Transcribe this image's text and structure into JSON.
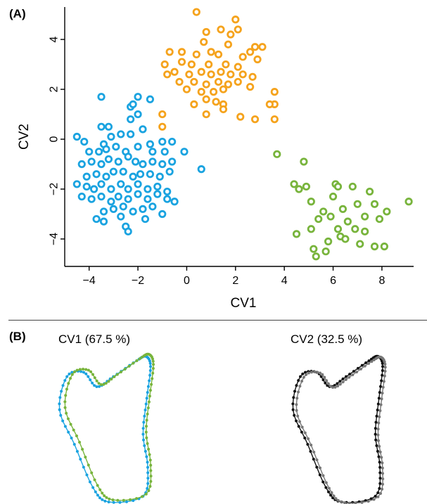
{
  "panels": {
    "a_label": "(A)",
    "b_label": "(B)"
  },
  "colors": {
    "group_blue": "#1aa3e0",
    "group_orange": "#f5a31d",
    "group_green": "#78b43c",
    "shape_dark": "#111111",
    "shape_gray": "#777777"
  },
  "chart_data": [
    {
      "type": "scatter",
      "title": "",
      "xlabel": "CV1",
      "ylabel": "CV2",
      "xlim": [
        -5,
        9.3
      ],
      "ylim": [
        -5.1,
        5.3
      ],
      "xticks": [
        -4,
        -2,
        0,
        2,
        4,
        6,
        8
      ],
      "yticks": [
        -4,
        -2,
        0,
        2,
        4
      ],
      "grid": false,
      "legend": "none",
      "series": [
        {
          "color": "#1aa3e0",
          "points": [
            [
              -2.0,
              1.7
            ],
            [
              -3.5,
              1.7
            ],
            [
              -1.5,
              1.6
            ],
            [
              -2.3,
              1.3
            ],
            [
              -2.2,
              1.4
            ],
            [
              -2.0,
              1.0
            ],
            [
              -3.2,
              0.5
            ],
            [
              -3.5,
              0.5
            ],
            [
              -2.3,
              0.8
            ],
            [
              -4.5,
              0.1
            ],
            [
              -4.2,
              -0.1
            ],
            [
              -3.4,
              -0.2
            ],
            [
              -3.1,
              0.1
            ],
            [
              -2.7,
              0.2
            ],
            [
              -2.3,
              0.2
            ],
            [
              -1.8,
              0.4
            ],
            [
              -1.5,
              -0.2
            ],
            [
              -1.0,
              -0.1
            ],
            [
              -0.6,
              -0.1
            ],
            [
              -4.0,
              -0.5
            ],
            [
              -3.6,
              -0.5
            ],
            [
              -3.3,
              -0.4
            ],
            [
              -2.9,
              -0.3
            ],
            [
              -2.5,
              -0.5
            ],
            [
              -2.0,
              -0.3
            ],
            [
              -1.4,
              -0.5
            ],
            [
              -0.9,
              -0.5
            ],
            [
              -0.1,
              -0.5
            ],
            [
              -4.3,
              -1.0
            ],
            [
              -3.9,
              -0.9
            ],
            [
              -3.5,
              -1.0
            ],
            [
              -3.2,
              -0.8
            ],
            [
              -2.8,
              -0.9
            ],
            [
              -2.4,
              -0.7
            ],
            [
              -2.1,
              -0.9
            ],
            [
              -1.8,
              -1.0
            ],
            [
              -1.4,
              -0.9
            ],
            [
              -1.0,
              -1.0
            ],
            [
              -0.6,
              -0.9
            ],
            [
              -4.1,
              -1.5
            ],
            [
              -3.7,
              -1.4
            ],
            [
              -3.3,
              -1.5
            ],
            [
              -3.0,
              -1.3
            ],
            [
              -2.6,
              -1.3
            ],
            [
              -2.2,
              -1.5
            ],
            [
              -1.9,
              -1.4
            ],
            [
              -1.5,
              -1.4
            ],
            [
              -1.1,
              -1.5
            ],
            [
              -0.7,
              -1.3
            ],
            [
              0.6,
              -1.2
            ],
            [
              -4.5,
              -1.8
            ],
            [
              -4.1,
              -1.9
            ],
            [
              -3.8,
              -2.0
            ],
            [
              -3.5,
              -1.8
            ],
            [
              -3.1,
              -2.0
            ],
            [
              -2.7,
              -1.8
            ],
            [
              -2.4,
              -2.0
            ],
            [
              -2.0,
              -1.8
            ],
            [
              -1.6,
              -2.0
            ],
            [
              -1.2,
              -1.9
            ],
            [
              -0.8,
              -2.1
            ],
            [
              -4.3,
              -2.3
            ],
            [
              -3.9,
              -2.4
            ],
            [
              -3.5,
              -2.3
            ],
            [
              -3.1,
              -2.5
            ],
            [
              -2.8,
              -2.3
            ],
            [
              -2.4,
              -2.4
            ],
            [
              -2.0,
              -2.2
            ],
            [
              -1.6,
              -2.4
            ],
            [
              -1.2,
              -2.2
            ],
            [
              -0.8,
              -2.4
            ],
            [
              -0.5,
              -2.5
            ],
            [
              -3.4,
              -2.9
            ],
            [
              -3.0,
              -2.8
            ],
            [
              -2.6,
              -2.7
            ],
            [
              -2.2,
              -2.9
            ],
            [
              -1.8,
              -2.8
            ],
            [
              -1.4,
              -2.7
            ],
            [
              -1.0,
              -3.0
            ],
            [
              -3.7,
              -3.2
            ],
            [
              -3.4,
              -3.3
            ],
            [
              -2.7,
              -3.1
            ],
            [
              -2.5,
              -3.5
            ],
            [
              -2.4,
              -3.7
            ],
            [
              -1.7,
              -3.2
            ]
          ]
        },
        {
          "color": "#f5a31d",
          "points": [
            [
              0.4,
              5.1
            ],
            [
              2.0,
              4.8
            ],
            [
              2.1,
              4.4
            ],
            [
              1.4,
              4.4
            ],
            [
              0.8,
              4.3
            ],
            [
              1.8,
              4.2
            ],
            [
              0.7,
              3.9
            ],
            [
              1.7,
              3.8
            ],
            [
              2.8,
              3.7
            ],
            [
              3.1,
              3.7
            ],
            [
              2.6,
              3.5
            ],
            [
              -0.7,
              3.5
            ],
            [
              -0.2,
              3.5
            ],
            [
              0.4,
              3.4
            ],
            [
              1.0,
              3.5
            ],
            [
              1.3,
              3.4
            ],
            [
              2.3,
              3.3
            ],
            [
              2.9,
              3.2
            ],
            [
              -0.9,
              3.0
            ],
            [
              -0.2,
              3.1
            ],
            [
              0.2,
              3.0
            ],
            [
              0.9,
              3.0
            ],
            [
              1.6,
              3.0
            ],
            [
              2.1,
              2.9
            ],
            [
              -0.8,
              2.6
            ],
            [
              -0.5,
              2.7
            ],
            [
              0.1,
              2.6
            ],
            [
              0.6,
              2.7
            ],
            [
              1.0,
              2.6
            ],
            [
              1.4,
              2.7
            ],
            [
              1.8,
              2.6
            ],
            [
              2.3,
              2.6
            ],
            [
              2.7,
              2.5
            ],
            [
              -0.3,
              2.3
            ],
            [
              0.3,
              2.3
            ],
            [
              0.8,
              2.2
            ],
            [
              1.3,
              2.3
            ],
            [
              1.7,
              2.2
            ],
            [
              2.1,
              2.3
            ],
            [
              2.6,
              2.1
            ],
            [
              0.0,
              2.0
            ],
            [
              0.6,
              1.9
            ],
            [
              1.1,
              1.9
            ],
            [
              1.5,
              2.0
            ],
            [
              3.6,
              1.9
            ],
            [
              0.8,
              1.6
            ],
            [
              1.2,
              1.5
            ],
            [
              0.3,
              1.4
            ],
            [
              1.5,
              1.4
            ],
            [
              3.6,
              1.4
            ],
            [
              1.5,
              1.2
            ],
            [
              -1.0,
              1.0
            ],
            [
              0.8,
              1.0
            ],
            [
              3.4,
              1.4
            ],
            [
              2.2,
              0.9
            ],
            [
              2.8,
              0.8
            ],
            [
              3.6,
              0.8
            ],
            [
              -1.0,
              0.5
            ]
          ]
        },
        {
          "color": "#78b43c",
          "points": [
            [
              3.7,
              -0.6
            ],
            [
              4.8,
              -0.9
            ],
            [
              4.4,
              -1.8
            ],
            [
              4.6,
              -2.0
            ],
            [
              4.9,
              -1.9
            ],
            [
              6.1,
              -1.8
            ],
            [
              6.2,
              -1.9
            ],
            [
              6.8,
              -1.9
            ],
            [
              7.5,
              -2.1
            ],
            [
              6.0,
              -2.3
            ],
            [
              5.1,
              -2.5
            ],
            [
              5.6,
              -2.9
            ],
            [
              6.4,
              -2.8
            ],
            [
              7.0,
              -2.6
            ],
            [
              7.7,
              -2.6
            ],
            [
              8.2,
              -2.9
            ],
            [
              9.1,
              -2.5
            ],
            [
              5.4,
              -3.2
            ],
            [
              5.9,
              -3.1
            ],
            [
              6.6,
              -3.3
            ],
            [
              7.3,
              -3.1
            ],
            [
              7.9,
              -3.2
            ],
            [
              4.5,
              -3.8
            ],
            [
              5.1,
              -3.6
            ],
            [
              6.2,
              -3.6
            ],
            [
              6.3,
              -3.9
            ],
            [
              6.9,
              -3.6
            ],
            [
              7.3,
              -3.7
            ],
            [
              5.8,
              -4.1
            ],
            [
              5.2,
              -4.4
            ],
            [
              7.1,
              -4.2
            ],
            [
              7.7,
              -4.3
            ],
            [
              8.1,
              -4.3
            ],
            [
              5.3,
              -4.7
            ],
            [
              5.7,
              -4.5
            ],
            [
              6.5,
              -4.0
            ]
          ]
        }
      ]
    }
  ],
  "shape_panels": [
    {
      "title": "CV1 (67.5 %)",
      "outline_colors": [
        "#1aa3e0",
        "#78b43c"
      ]
    },
    {
      "title": "CV2 (32.5 %)",
      "outline_colors": [
        "#111111",
        "#777777"
      ]
    }
  ]
}
